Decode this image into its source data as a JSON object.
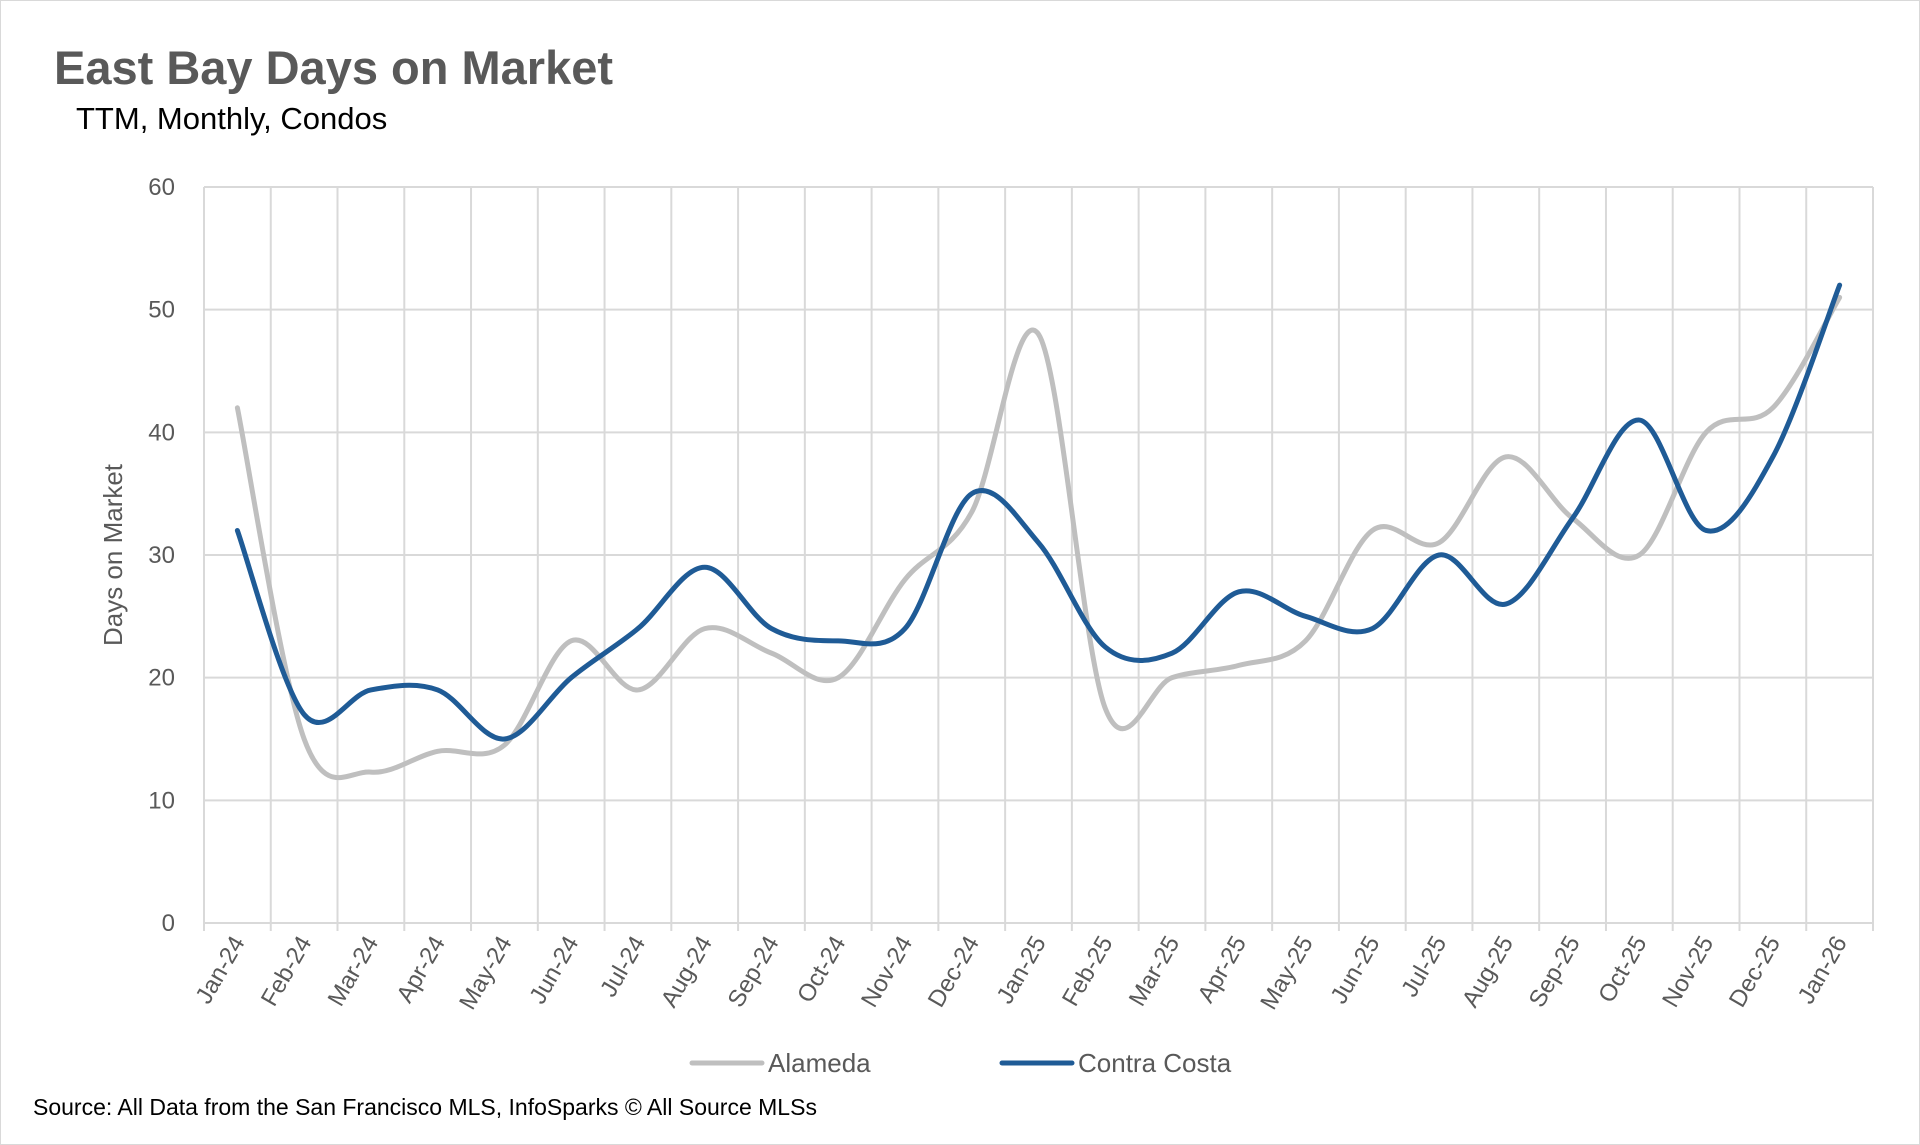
{
  "chart_data": {
    "type": "line",
    "title": "East Bay Days on Market",
    "subtitle": "TTM, Monthly, Condos",
    "xlabel": "",
    "ylabel": "Days on Market",
    "ylim": [
      0,
      60
    ],
    "yticks": [
      0,
      10,
      20,
      30,
      40,
      50,
      60
    ],
    "grid": true,
    "legend": "bottom",
    "categories": [
      "Jan-24",
      "Feb-24",
      "Mar-24",
      "Apr-24",
      "May-24",
      "Jun-24",
      "Jul-24",
      "Aug-24",
      "Sep-24",
      "Oct-24",
      "Nov-24",
      "Dec-24",
      "Jan-25",
      "Feb-25",
      "Mar-25",
      "Apr-25",
      "May-25",
      "Jun-25",
      "Jul-25",
      "Aug-25",
      "Sep-25",
      "Oct-25",
      "Nov-25",
      "Dec-25",
      "Jan-26"
    ],
    "series": [
      {
        "name": "Alameda",
        "color": "#bfbfbf",
        "values": [
          42,
          15,
          12.3,
          14,
          14.5,
          23,
          19,
          24,
          22,
          20,
          28,
          33.5,
          48,
          17.5,
          20,
          21,
          23,
          32,
          31,
          38,
          33,
          30,
          40,
          42,
          51
        ]
      },
      {
        "name": "Contra Costa",
        "color": "#1f5b96",
        "values": [
          32,
          17,
          19,
          19,
          15,
          20,
          24,
          29,
          24,
          23,
          24,
          35,
          31,
          22.5,
          22,
          27,
          25,
          24,
          30,
          26,
          33,
          41,
          32,
          38,
          52
        ]
      }
    ]
  },
  "source": "Source: All Data from the San Francisco MLS, InfoSparks © All Source MLSs"
}
